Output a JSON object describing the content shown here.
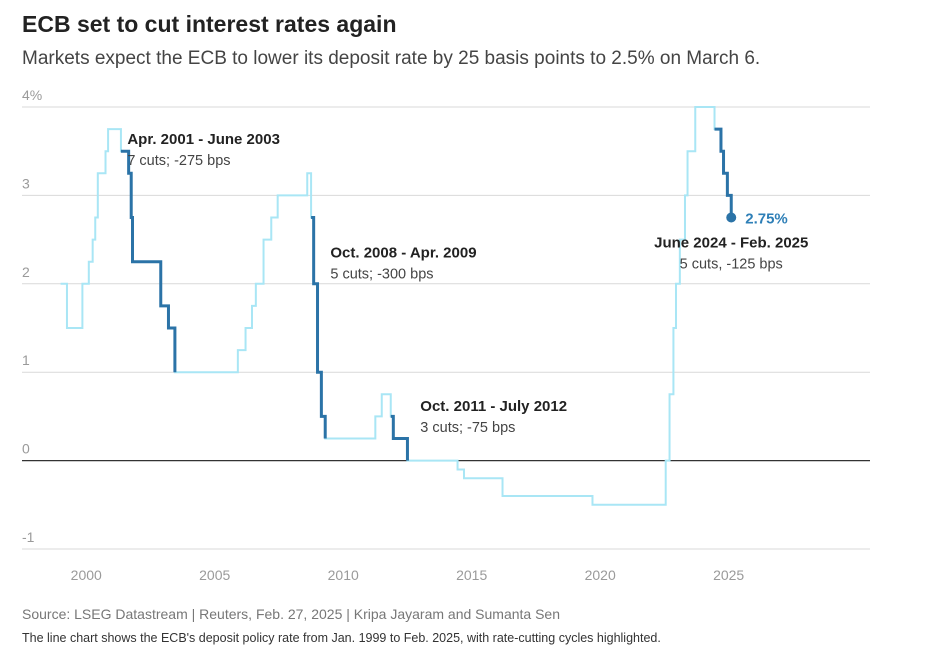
{
  "title": "ECB set to cut interest rates again",
  "subtitle": "Markets expect the ECB to lower its deposit rate by 25 basis points to 2.5% on March 6.",
  "source": "Source: LSEG Datastream | Reuters, Feb. 27, 2025 | Kripa Jayaram and Sumanta Sen",
  "note": "The line chart shows the ECB's deposit policy rate from Jan. 1999 to Feb. 2025, with rate-cutting cycles highlighted.",
  "colors": {
    "base_line": "#a9e6f5",
    "cut_line": "#2b73a7",
    "end_label": "#2e7fb7",
    "grid": "#d9d9d9",
    "zero_line": "#333333"
  },
  "chart_data": {
    "type": "line",
    "xlim": [
      1997.5,
      2030.5
    ],
    "ylim": [
      -1,
      4
    ],
    "x_ticks": [
      2000,
      2005,
      2010,
      2015,
      2020,
      2025
    ],
    "x_tick_labels": [
      "2000",
      "2005",
      "2010",
      "2015",
      "2020",
      "2025"
    ],
    "y_ticks": [
      4,
      3,
      2,
      1,
      0,
      -1
    ],
    "y_tick_labels": [
      "4%",
      "3",
      "2",
      "1",
      "0",
      "-1"
    ],
    "grid": "horizontal",
    "step_interpolation": "after",
    "series": [
      {
        "role": "deposit-rate",
        "x": [
          1999.0,
          1999.1,
          1999.25,
          1999.85,
          2000.1,
          2000.25,
          2000.35,
          2000.45,
          2000.75,
          2000.85,
          2001.35,
          2001.65,
          2001.75,
          2001.8,
          2002.9,
          2003.2,
          2003.45,
          2005.9,
          2006.2,
          2006.45,
          2006.6,
          2006.9,
          2007.2,
          2007.45,
          2008.6,
          2008.75,
          2008.85,
          2009.0,
          2009.15,
          2009.3,
          2011.25,
          2011.5,
          2011.85,
          2011.95,
          2012.5,
          2014.45,
          2014.7,
          2016.2,
          2019.7,
          2022.55,
          2022.7,
          2022.85,
          2022.95,
          2023.1,
          2023.3,
          2023.4,
          2023.7,
          2024.45,
          2024.7,
          2024.8,
          2024.95,
          2025.1
        ],
        "y": [
          2.0,
          2.0,
          1.5,
          2.0,
          2.25,
          2.5,
          2.75,
          3.25,
          3.5,
          3.75,
          3.5,
          3.25,
          2.75,
          2.25,
          1.75,
          1.5,
          1.0,
          1.25,
          1.5,
          1.75,
          2.0,
          2.5,
          2.75,
          3.0,
          3.25,
          2.75,
          2.0,
          1.0,
          0.5,
          0.25,
          0.5,
          0.75,
          0.5,
          0.25,
          0.0,
          -0.1,
          -0.2,
          -0.4,
          -0.5,
          0.0,
          0.75,
          1.5,
          2.0,
          2.5,
          3.0,
          3.5,
          4.0,
          3.75,
          3.5,
          3.25,
          3.0,
          2.75
        ]
      }
    ],
    "cut_cycles": [
      {
        "from": 2001.35,
        "to": 2003.45,
        "title": "Apr. 2001 - June 2003",
        "detail": "7 cuts; -275 bps",
        "label_x": 2001.6,
        "label_y": 3.58
      },
      {
        "from": 2008.75,
        "to": 2009.3,
        "title": "Oct. 2008 - Apr. 2009",
        "detail": "5 cuts; -300 bps",
        "label_x": 2009.5,
        "label_y": 2.3
      },
      {
        "from": 2011.85,
        "to": 2012.5,
        "title": "Oct. 2011 - July 2012",
        "detail": "3 cuts; -75 bps",
        "label_x": 2013.0,
        "label_y": 0.56
      },
      {
        "from": 2024.45,
        "to": 2025.1,
        "title": "June 2024 - Feb. 2025",
        "detail": "5 cuts, -125 bps",
        "label_x": 2025.1,
        "label_y": 2.41,
        "anchor": "middle"
      }
    ],
    "end_point": {
      "x": 2025.1,
      "y": 2.75,
      "label": "2.75%"
    }
  }
}
